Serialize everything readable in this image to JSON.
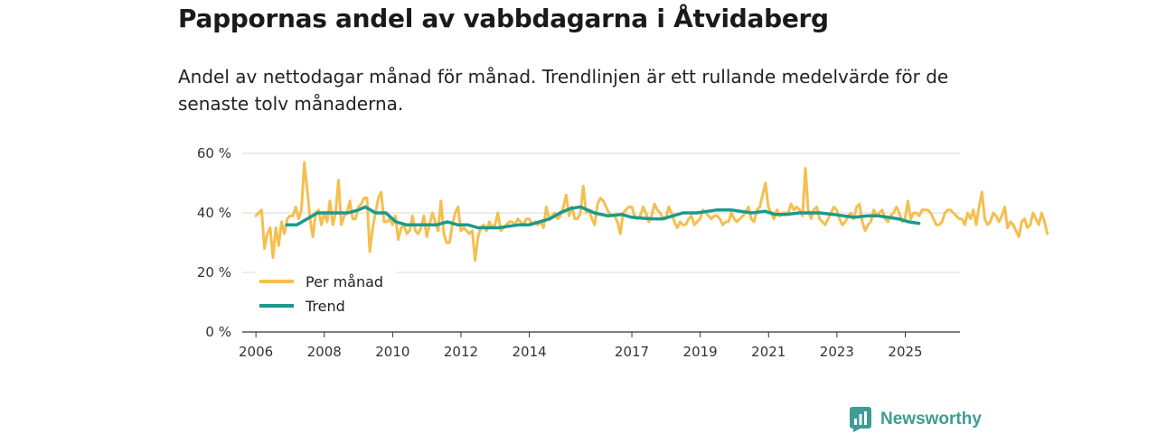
{
  "header": {
    "title": "Pappornas andel av vabbdagarna i Åtvidaberg",
    "subtitle": "Andel av nettodagar månad för månad. Trendlinjen är ett rullande medelvärde för de senaste tolv månaderna."
  },
  "brand": {
    "name": "Newsworthy",
    "icon": "newsworthy-logo-icon",
    "color": "#3f9c95"
  },
  "chart_data": {
    "type": "line",
    "title": "Pappornas andel av vabbdagarna i Åtvidaberg",
    "xlabel": "",
    "ylabel": "",
    "ylim": [
      0,
      60
    ],
    "y_ticks": [
      0,
      20,
      40,
      60
    ],
    "y_tick_labels": [
      "0 %",
      "20 %",
      "40 %",
      "60 %"
    ],
    "x_ticks": [
      2006,
      2008,
      2010,
      2012,
      2014,
      2017,
      2019,
      2021,
      2023,
      2025
    ],
    "x_tick_labels": [
      "2006",
      "2008",
      "2010",
      "2012",
      "2014",
      "2017",
      "2019",
      "2021",
      "2023",
      "2025"
    ],
    "xlim": [
      2005.6,
      2026.6
    ],
    "grid": true,
    "legend_position": "bottom-left",
    "series": [
      {
        "name": "Per månad",
        "color": "#f5bf4f",
        "x_start": 2006.0,
        "x_step": 0.0833,
        "values": [
          39,
          40,
          41,
          28,
          33,
          35,
          25,
          35,
          29,
          37,
          33,
          38,
          39,
          39,
          42,
          38,
          41,
          57,
          48,
          38,
          32,
          40,
          41,
          36,
          40,
          37,
          44,
          36,
          40,
          51,
          36,
          39,
          40,
          44,
          38,
          38,
          42,
          43,
          45,
          45,
          27,
          35,
          40,
          45,
          47,
          37,
          37,
          38,
          36,
          39,
          31,
          35,
          36,
          33,
          34,
          39,
          34,
          33,
          35,
          39,
          32,
          36,
          40,
          37,
          34,
          44,
          33,
          30,
          30,
          36,
          40,
          42,
          34,
          35,
          34,
          33,
          34,
          24,
          32,
          35,
          36,
          34,
          37,
          35,
          36,
          40,
          34,
          35,
          36,
          37,
          37,
          36,
          38,
          37,
          36,
          38,
          38,
          36,
          37,
          36,
          37,
          35,
          42,
          38,
          39,
          40,
          38,
          39,
          42,
          46,
          39,
          42,
          38,
          38,
          40,
          49,
          40,
          41,
          38,
          36,
          43,
          45,
          44,
          42,
          40,
          39,
          39,
          37,
          33,
          40,
          41,
          42,
          42,
          39,
          38,
          39,
          42,
          40,
          37,
          39,
          43,
          41,
          40,
          38,
          38,
          42,
          40,
          37,
          35,
          37,
          36,
          36,
          38,
          39,
          36,
          37,
          38,
          41,
          40,
          39,
          38,
          39,
          39,
          38,
          36,
          37,
          37,
          40,
          38,
          37,
          38,
          39,
          40,
          42,
          38,
          37,
          41,
          42,
          46,
          50,
          42,
          40,
          38,
          41,
          39,
          40,
          40,
          40,
          43,
          41,
          42,
          41,
          39,
          55,
          41,
          38,
          41,
          42,
          38,
          37,
          36,
          38,
          40,
          42,
          41,
          38,
          36,
          37,
          39,
          40,
          38,
          42,
          43,
          37,
          34,
          36,
          37,
          41,
          39,
          40,
          41,
          38,
          37,
          39,
          40,
          42,
          40,
          37,
          38,
          44,
          38,
          40,
          40,
          39,
          41,
          41,
          41,
          40,
          38,
          36,
          36,
          37,
          40,
          41,
          41,
          40,
          39,
          38,
          38,
          36,
          40,
          38,
          41,
          36,
          42,
          47,
          38,
          36,
          37,
          40,
          39,
          37,
          39,
          42,
          35,
          37,
          36,
          34,
          32,
          37,
          38,
          35,
          36,
          40,
          38,
          36,
          40,
          37,
          33
        ]
      },
      {
        "name": "Trend",
        "color": "#1a9a8c",
        "x_points": [
          2006.9,
          2007.2,
          2007.5,
          2007.8,
          2008.1,
          2008.4,
          2008.7,
          2009.0,
          2009.2,
          2009.5,
          2009.8,
          2010.1,
          2010.4,
          2010.7,
          2011.0,
          2011.3,
          2011.6,
          2011.9,
          2012.2,
          2012.5,
          2012.8,
          2013.1,
          2013.4,
          2013.7,
          2014.0,
          2014.3,
          2014.6,
          2014.9,
          2015.2,
          2015.5,
          2015.9,
          2016.3,
          2016.7,
          2017.0,
          2017.3,
          2017.6,
          2017.9,
          2018.2,
          2018.5,
          2018.9,
          2019.2,
          2019.5,
          2019.9,
          2020.2,
          2020.5,
          2020.9,
          2021.2,
          2021.5,
          2021.9,
          2022.2,
          2022.5,
          2022.9,
          2023.2,
          2023.5,
          2023.9,
          2024.2,
          2024.5,
          2024.8,
          2025.1,
          2025.4
        ],
        "values": [
          36,
          36,
          38,
          40,
          40,
          40,
          40,
          41,
          42,
          40,
          40,
          37,
          36,
          36,
          36,
          36,
          37,
          36,
          36,
          35,
          35,
          35,
          35.5,
          36,
          36,
          37,
          38,
          40,
          41.5,
          42,
          40,
          39,
          39.5,
          38.5,
          38.2,
          38,
          38,
          39,
          40,
          40,
          40.5,
          41,
          41,
          40.5,
          40,
          40.5,
          39.5,
          39.5,
          40,
          40,
          40,
          39.5,
          39,
          38.5,
          39,
          39,
          38.5,
          38,
          37,
          36.5
        ]
      }
    ]
  }
}
